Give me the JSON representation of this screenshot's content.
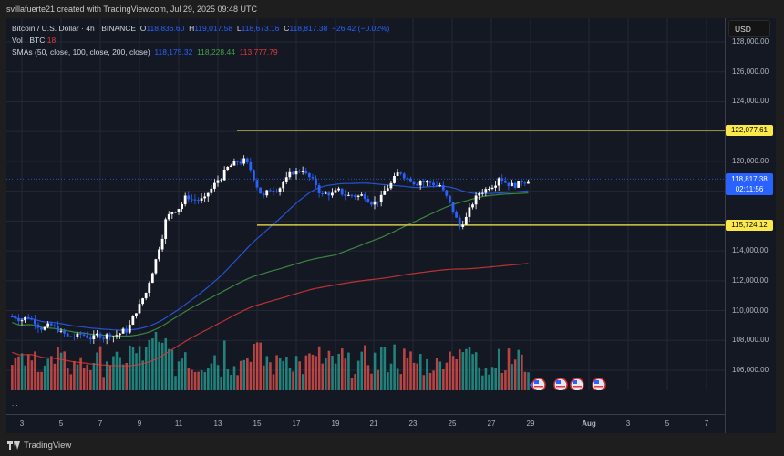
{
  "attribution": "svillafuerte21 created with TradingView.com, Jul 29, 2025 09:48 UTC",
  "legend": {
    "symbol": "Bitcoin / U.S. Dollar · 4h · BINANCE",
    "open_label": "O",
    "open": "118,836.60",
    "high_label": "H",
    "high": "119,017.58",
    "low_label": "L",
    "low": "118,673.16",
    "close_label": "C",
    "close": "118,817.38",
    "change": "−26.42 (−0.02%)",
    "vol_label": "Vol · BTC",
    "vol_value": "18",
    "sma_label": "SMAs (50, close, 100, close, 200, close)",
    "sma50": "118,175.32",
    "sma100": "118,228.44",
    "sma200": "113,777.79"
  },
  "price_axis": {
    "currency_button": "USD",
    "ticks": [
      "128,000.00",
      "126,000.00",
      "124,000.00",
      "120,000.00",
      "114,000.00",
      "112,000.00",
      "110,000.00",
      "108,000.00",
      "106,000.00"
    ],
    "resistance_tag": "122,077.61",
    "current_price_tag": "118,817.38",
    "countdown": "02:11:56",
    "support_tag": "115,724.12"
  },
  "time_axis": {
    "ticks": [
      "3",
      "5",
      "7",
      "9",
      "11",
      "13",
      "15",
      "17",
      "19",
      "21",
      "23",
      "25",
      "27",
      "29",
      "Aug",
      "3",
      "5",
      "7"
    ]
  },
  "more_dots": "...",
  "footer": {
    "brand": "TradingView"
  },
  "colors": {
    "background": "#141823",
    "up_candle": "#ffffff",
    "down_candle": "#2962ff",
    "sma50": "#2962ff",
    "sma100": "#43a047",
    "sma200": "#e53935",
    "hline": "#d4c94a",
    "vol_up": "#26a69a",
    "vol_down": "#ef5350"
  },
  "chart_data": {
    "type": "candlestick",
    "title": "Bitcoin / U.S. Dollar · 4h · BINANCE",
    "xlabel": "",
    "ylabel": "USD",
    "x_ticks": [
      "3",
      "5",
      "7",
      "9",
      "11",
      "13",
      "15",
      "17",
      "19",
      "21",
      "23",
      "25",
      "27",
      "29",
      "Aug",
      "3",
      "5",
      "7"
    ],
    "ylim": [
      104500,
      129000
    ],
    "grid": true,
    "daily_close_approx": {
      "x": [
        "Jul 3",
        "Jul 4",
        "Jul 5",
        "Jul 6",
        "Jul 7",
        "Jul 8",
        "Jul 9",
        "Jul 10",
        "Jul 11",
        "Jul 12",
        "Jul 13",
        "Jul 14",
        "Jul 15",
        "Jul 16",
        "Jul 17",
        "Jul 18",
        "Jul 19",
        "Jul 20",
        "Jul 21",
        "Jul 22",
        "Jul 23",
        "Jul 24",
        "Jul 25",
        "Jul 26",
        "Jul 27",
        "Jul 28",
        "Jul 29"
      ],
      "close": [
        109600,
        108900,
        108200,
        108300,
        108300,
        108700,
        111200,
        116000,
        117500,
        117400,
        119200,
        120000,
        117600,
        118600,
        119500,
        117700,
        117900,
        117700,
        117500,
        119300,
        118700,
        118400,
        115600,
        117900,
        119000,
        118400,
        118817
      ]
    },
    "horizontal_levels": [
      {
        "name": "resistance",
        "value": 122077.61
      },
      {
        "name": "support",
        "value": 115724.12
      }
    ],
    "series": [
      {
        "name": "SMA 50",
        "last": 118175.32
      },
      {
        "name": "SMA 100",
        "last": 118228.44
      },
      {
        "name": "SMA 200",
        "last": 113777.79
      }
    ],
    "volume_last": 18
  }
}
